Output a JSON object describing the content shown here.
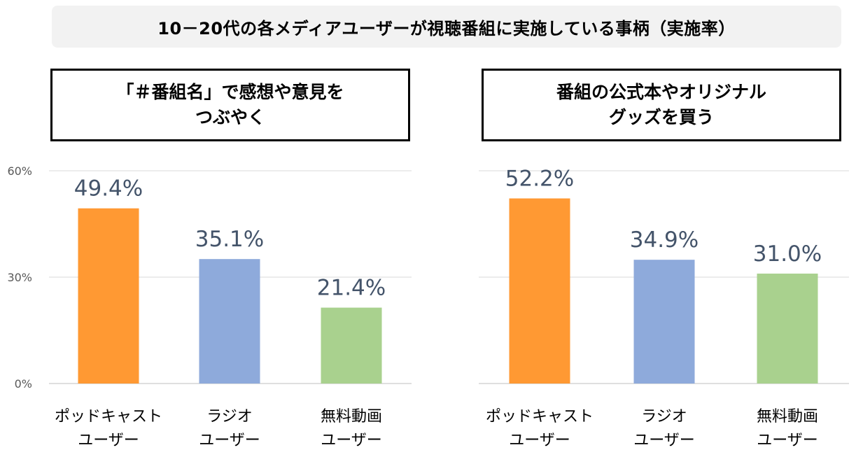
{
  "title": "10－20代の各メディアユーザーが視聴番組に実施している事柄（実施率）",
  "panels": [
    {
      "label": "「＃番組名」で感想や意見を\nつぶやく"
    },
    {
      "label": "番組の公式本やオリジナル\nグッズを買う"
    }
  ],
  "chart_data": [
    {
      "type": "bar",
      "title": "「＃番組名」で感想や意見を つぶやく",
      "categories": [
        "ポッドキャスト\nユーザー",
        "ラジオ\nユーザー",
        "無料動画\nユーザー"
      ],
      "values": [
        49.4,
        35.1,
        21.4
      ],
      "value_labels": [
        "49.4%",
        "35.1%",
        "21.4%"
      ],
      "colors": [
        "#ff9933",
        "#8eaadb",
        "#a9d18e"
      ],
      "ylim": [
        0,
        60
      ],
      "yticks": [
        "0%",
        "30%",
        "60%"
      ],
      "grid": true
    },
    {
      "type": "bar",
      "title": "番組の公式本やオリジナル グッズを買う",
      "categories": [
        "ポッドキャスト\nユーザー",
        "ラジオ\nユーザー",
        "無料動画\nユーザー"
      ],
      "values": [
        52.2,
        34.9,
        31.0
      ],
      "value_labels": [
        "52.2%",
        "34.9%",
        "31.0%"
      ],
      "colors": [
        "#ff9933",
        "#8eaadb",
        "#a9d18e"
      ],
      "ylim": [
        0,
        60
      ],
      "yticks": [],
      "grid": true
    }
  ]
}
